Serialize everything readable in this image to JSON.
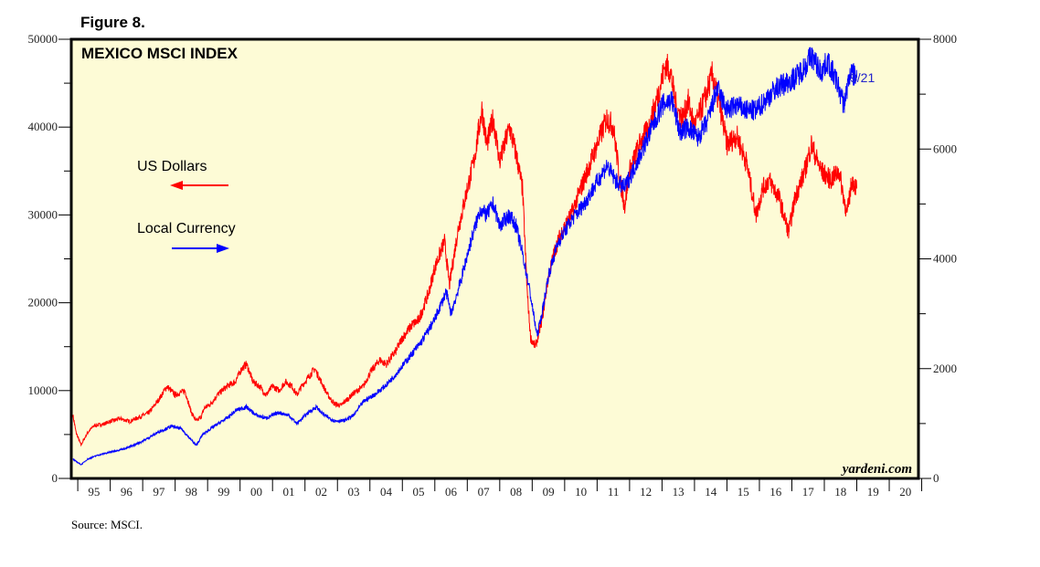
{
  "figure_label": "Figure 8.",
  "source_note": "Source: MSCI.",
  "watermark": "yardeni.com",
  "colors": {
    "plot_bg": "#fdfbd6",
    "usd": "#ff0000",
    "local": "#0000ff",
    "frame": "#000000"
  },
  "chart_data": {
    "type": "line",
    "title": "MEXICO MSCI INDEX",
    "x_tick_labels": [
      "95",
      "96",
      "97",
      "98",
      "99",
      "00",
      "01",
      "02",
      "03",
      "04",
      "05",
      "06",
      "07",
      "08",
      "09",
      "10",
      "11",
      "12",
      "13",
      "14",
      "15",
      "16",
      "17",
      "18",
      "19",
      "20"
    ],
    "xlim": [
      1994.8,
      2020.9
    ],
    "ylim_left": [
      0,
      50000
    ],
    "ylim_right": [
      0,
      8000
    ],
    "left_ticks": [
      0,
      10000,
      20000,
      30000,
      40000,
      50000
    ],
    "right_ticks": [
      0,
      2000,
      4000,
      6000,
      8000
    ],
    "end_label": "9/21",
    "legend": [
      {
        "label": "US Dollars",
        "arrow": "left"
      },
      {
        "label": "Local Currency",
        "arrow": "right"
      }
    ],
    "series": [
      {
        "name": "US Dollars",
        "axis": "left",
        "points": [
          [
            1994.85,
            7200
          ],
          [
            1994.95,
            5200
          ],
          [
            1995.1,
            3800
          ],
          [
            1995.3,
            5200
          ],
          [
            1995.5,
            6000
          ],
          [
            1995.8,
            6200
          ],
          [
            1996.0,
            6500
          ],
          [
            1996.3,
            6800
          ],
          [
            1996.6,
            6500
          ],
          [
            1996.9,
            7000
          ],
          [
            1997.2,
            7500
          ],
          [
            1997.5,
            9000
          ],
          [
            1997.75,
            10500
          ],
          [
            1998.0,
            9500
          ],
          [
            1998.3,
            10000
          ],
          [
            1998.5,
            7500
          ],
          [
            1998.65,
            6500
          ],
          [
            1998.8,
            7000
          ],
          [
            1998.9,
            8000
          ],
          [
            1999.1,
            8500
          ],
          [
            1999.3,
            9500
          ],
          [
            1999.6,
            10500
          ],
          [
            1999.85,
            11000
          ],
          [
            2000.05,
            12500
          ],
          [
            2000.2,
            13000
          ],
          [
            2000.4,
            11000
          ],
          [
            2000.6,
            10500
          ],
          [
            2000.8,
            9500
          ],
          [
            2001.0,
            10500
          ],
          [
            2001.2,
            10000
          ],
          [
            2001.4,
            11000
          ],
          [
            2001.6,
            10500
          ],
          [
            2001.75,
            9500
          ],
          [
            2001.9,
            10500
          ],
          [
            2002.1,
            11500
          ],
          [
            2002.3,
            12500
          ],
          [
            2002.5,
            11000
          ],
          [
            2002.7,
            9500
          ],
          [
            2002.9,
            8500
          ],
          [
            2003.1,
            8300
          ],
          [
            2003.3,
            9000
          ],
          [
            2003.5,
            9700
          ],
          [
            2003.8,
            10500
          ],
          [
            2004.0,
            12000
          ],
          [
            2004.3,
            13500
          ],
          [
            2004.5,
            13000
          ],
          [
            2004.8,
            14500
          ],
          [
            2005.0,
            16000
          ],
          [
            2005.3,
            17500
          ],
          [
            2005.5,
            18000
          ],
          [
            2005.8,
            21000
          ],
          [
            2006.0,
            24000
          ],
          [
            2006.3,
            27000
          ],
          [
            2006.45,
            22000
          ],
          [
            2006.7,
            28000
          ],
          [
            2007.0,
            33000
          ],
          [
            2007.2,
            36000
          ],
          [
            2007.45,
            42000
          ],
          [
            2007.6,
            38000
          ],
          [
            2007.8,
            41000
          ],
          [
            2008.0,
            36000
          ],
          [
            2008.3,
            40000
          ],
          [
            2008.5,
            37000
          ],
          [
            2008.7,
            33000
          ],
          [
            2008.85,
            21000
          ],
          [
            2008.95,
            16000
          ],
          [
            2009.1,
            15000
          ],
          [
            2009.3,
            18000
          ],
          [
            2009.5,
            23000
          ],
          [
            2009.7,
            26000
          ],
          [
            2009.9,
            28000
          ],
          [
            2010.2,
            30000
          ],
          [
            2010.5,
            33000
          ],
          [
            2010.8,
            36000
          ],
          [
            2011.0,
            38000
          ],
          [
            2011.3,
            41000
          ],
          [
            2011.5,
            40000
          ],
          [
            2011.7,
            34000
          ],
          [
            2011.85,
            31000
          ],
          [
            2012.0,
            35000
          ],
          [
            2012.3,
            38000
          ],
          [
            2012.6,
            40000
          ],
          [
            2012.9,
            44000
          ],
          [
            2013.1,
            47000
          ],
          [
            2013.25,
            46500
          ],
          [
            2013.45,
            42000
          ],
          [
            2013.65,
            41000
          ],
          [
            2013.8,
            43000
          ],
          [
            2014.0,
            40000
          ],
          [
            2014.3,
            43000
          ],
          [
            2014.55,
            46000
          ],
          [
            2014.8,
            42000
          ],
          [
            2015.0,
            38000
          ],
          [
            2015.3,
            39000
          ],
          [
            2015.6,
            36000
          ],
          [
            2015.9,
            30000
          ],
          [
            2016.1,
            33000
          ],
          [
            2016.3,
            34000
          ],
          [
            2016.6,
            32000
          ],
          [
            2016.9,
            28000
          ],
          [
            2017.1,
            32000
          ],
          [
            2017.4,
            35000
          ],
          [
            2017.6,
            38000
          ],
          [
            2017.9,
            35000
          ],
          [
            2018.2,
            34000
          ],
          [
            2018.45,
            35000
          ],
          [
            2018.7,
            30000
          ],
          [
            2018.85,
            34000
          ],
          [
            2019.0,
            33000
          ]
        ]
      },
      {
        "name": "Local Currency",
        "axis": "right",
        "points": [
          [
            1994.85,
            350
          ],
          [
            1995.1,
            250
          ],
          [
            1995.3,
            350
          ],
          [
            1995.6,
            420
          ],
          [
            1996.0,
            480
          ],
          [
            1996.5,
            550
          ],
          [
            1997.0,
            680
          ],
          [
            1997.5,
            850
          ],
          [
            1997.9,
            950
          ],
          [
            1998.2,
            900
          ],
          [
            1998.5,
            700
          ],
          [
            1998.65,
            600
          ],
          [
            1998.85,
            800
          ],
          [
            1999.2,
            950
          ],
          [
            1999.6,
            1100
          ],
          [
            1999.9,
            1250
          ],
          [
            2000.2,
            1300
          ],
          [
            2000.5,
            1150
          ],
          [
            2000.8,
            1100
          ],
          [
            2001.2,
            1200
          ],
          [
            2001.5,
            1150
          ],
          [
            2001.75,
            1000
          ],
          [
            2002.1,
            1200
          ],
          [
            2002.35,
            1300
          ],
          [
            2002.6,
            1150
          ],
          [
            2002.9,
            1050
          ],
          [
            2003.2,
            1050
          ],
          [
            2003.5,
            1150
          ],
          [
            2003.8,
            1400
          ],
          [
            2004.2,
            1550
          ],
          [
            2004.5,
            1700
          ],
          [
            2004.8,
            1900
          ],
          [
            2005.2,
            2200
          ],
          [
            2005.6,
            2500
          ],
          [
            2006.0,
            2900
          ],
          [
            2006.35,
            3400
          ],
          [
            2006.5,
            3000
          ],
          [
            2006.8,
            3600
          ],
          [
            2007.1,
            4300
          ],
          [
            2007.4,
            4900
          ],
          [
            2007.6,
            4800
          ],
          [
            2007.8,
            5000
          ],
          [
            2008.0,
            4600
          ],
          [
            2008.3,
            4800
          ],
          [
            2008.5,
            4600
          ],
          [
            2008.7,
            4100
          ],
          [
            2008.9,
            3500
          ],
          [
            2009.15,
            2600
          ],
          [
            2009.3,
            3000
          ],
          [
            2009.5,
            3700
          ],
          [
            2009.8,
            4300
          ],
          [
            2010.2,
            4700
          ],
          [
            2010.6,
            5000
          ],
          [
            2010.9,
            5300
          ],
          [
            2011.3,
            5700
          ],
          [
            2011.6,
            5400
          ],
          [
            2011.85,
            5300
          ],
          [
            2012.1,
            5600
          ],
          [
            2012.4,
            6000
          ],
          [
            2012.7,
            6400
          ],
          [
            2013.0,
            6800
          ],
          [
            2013.3,
            6900
          ],
          [
            2013.55,
            6300
          ],
          [
            2013.8,
            6400
          ],
          [
            2014.1,
            6200
          ],
          [
            2014.4,
            6500
          ],
          [
            2014.7,
            7100
          ],
          [
            2015.0,
            6700
          ],
          [
            2015.3,
            6800
          ],
          [
            2015.6,
            6700
          ],
          [
            2015.9,
            6700
          ],
          [
            2016.2,
            6900
          ],
          [
            2016.5,
            7100
          ],
          [
            2016.8,
            7200
          ],
          [
            2017.1,
            7300
          ],
          [
            2017.4,
            7500
          ],
          [
            2017.6,
            7700
          ],
          [
            2017.9,
            7400
          ],
          [
            2018.1,
            7600
          ],
          [
            2018.4,
            7200
          ],
          [
            2018.6,
            6800
          ],
          [
            2018.8,
            7400
          ],
          [
            2019.0,
            7300
          ]
        ]
      }
    ]
  }
}
